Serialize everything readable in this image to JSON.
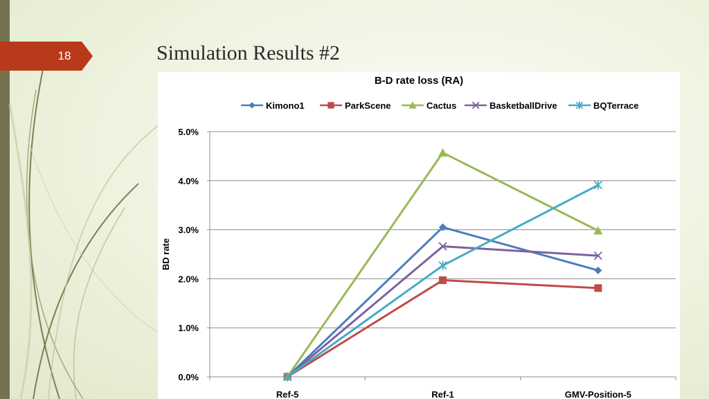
{
  "slide": {
    "number": "18",
    "title": "Simulation Results #2"
  },
  "colors": {
    "accent": "#b83a1a",
    "left_bar": "#76714f"
  },
  "chart_data": {
    "type": "line",
    "title": "B-D rate loss (RA)",
    "xlabel": "",
    "ylabel": "BD rate",
    "categories": [
      "Ref-5",
      "Ref-1",
      "GMV-Position-5"
    ],
    "ylim": [
      0,
      5
    ],
    "yticks": [
      "0.0%",
      "1.0%",
      "2.0%",
      "3.0%",
      "4.0%",
      "5.0%"
    ],
    "grid": true,
    "legend_position": "top",
    "series": [
      {
        "name": "Kimono1",
        "values": [
          0,
          3.05,
          2.17
        ],
        "color": "#4a7ebb",
        "marker": "diamond"
      },
      {
        "name": "ParkScene",
        "values": [
          0,
          1.97,
          1.81
        ],
        "color": "#be4b48",
        "marker": "square"
      },
      {
        "name": "Cactus",
        "values": [
          0,
          4.57,
          2.98
        ],
        "color": "#98b954",
        "marker": "triangle"
      },
      {
        "name": "BasketballDrive",
        "values": [
          0,
          2.66,
          2.47
        ],
        "color": "#7d60a0",
        "marker": "x"
      },
      {
        "name": "BQTerrace",
        "values": [
          0,
          2.27,
          3.91
        ],
        "color": "#46aac5",
        "marker": "star"
      }
    ]
  }
}
